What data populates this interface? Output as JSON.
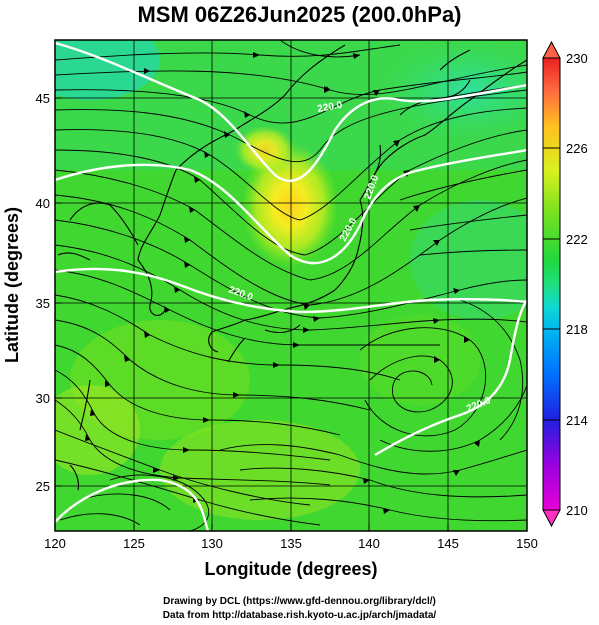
{
  "title": "MSM 06Z26Jun2025 (200.0hPa)",
  "x_axis": {
    "label": "Longitude (degrees)",
    "ticks": [
      "120",
      "125",
      "130",
      "135",
      "140",
      "145",
      "150"
    ],
    "range": [
      120,
      150
    ]
  },
  "y_axis": {
    "label": "Latitude  (degrees)",
    "ticks": [
      "25",
      "30",
      "35",
      "40",
      "45"
    ],
    "range": [
      23,
      48
    ]
  },
  "colorbar": {
    "ticks": [
      "230",
      "226",
      "222",
      "218",
      "214",
      "210"
    ],
    "range": [
      210,
      230
    ],
    "colors": [
      "#e800d8",
      "#9a00e0",
      "#3030e0",
      "#1060ff",
      "#00a8ff",
      "#10d8e0",
      "#20e0a0",
      "#20d840",
      "#50e020",
      "#a0e818",
      "#e0f020",
      "#ffd020",
      "#ff9030",
      "#ff5040",
      "#e82020"
    ]
  },
  "contours": {
    "labels": [
      "220.0",
      "220.0",
      "220.0",
      "220.0",
      "220.0"
    ],
    "color": "#ffffff"
  },
  "credits": {
    "line1": "Drawing by DCL (https://www.gfd-dennou.org/library/dcl/)",
    "line2": "Data from http://database.rish.kyoto-u.ac.jp/arch/jmadata/"
  }
}
